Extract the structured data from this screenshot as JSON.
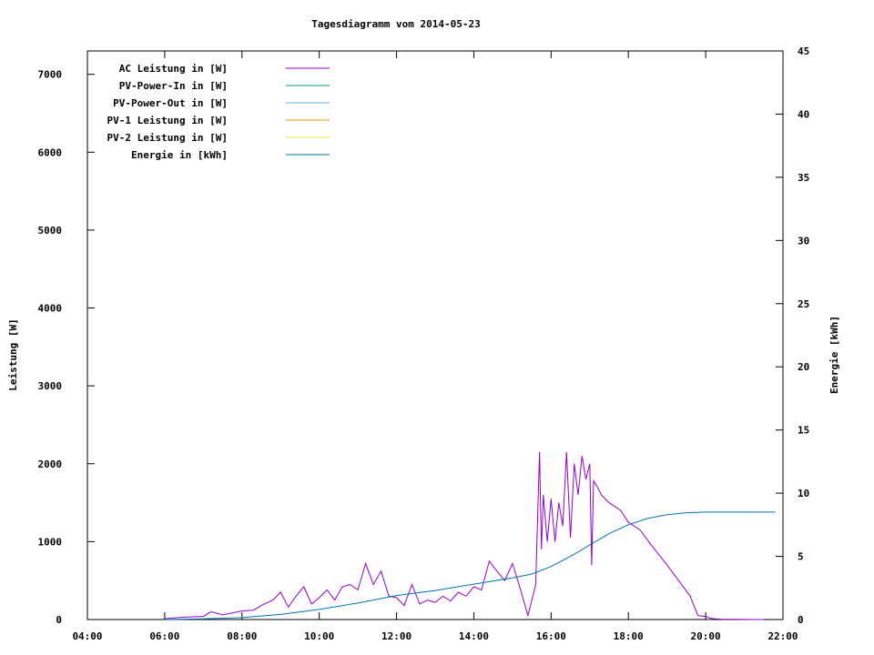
{
  "chart_data": {
    "type": "line",
    "title": "Tagesdiagramm vom 2014-05-23",
    "ylabel": "Leistung [W]",
    "y2label": "Energie [kWh]",
    "xlim": [
      4,
      22
    ],
    "ylim": [
      0,
      7300
    ],
    "y2lim": [
      0,
      45
    ],
    "x_ticks": [
      "04:00",
      "06:00",
      "08:00",
      "10:00",
      "12:00",
      "14:00",
      "16:00",
      "18:00",
      "20:00",
      "22:00"
    ],
    "y_ticks": [
      "0",
      "1000",
      "2000",
      "3000",
      "4000",
      "5000",
      "6000",
      "7000"
    ],
    "y2_ticks": [
      "0",
      "5",
      "10",
      "15",
      "20",
      "25",
      "30",
      "35",
      "40",
      "45"
    ],
    "legend_position": "top-left",
    "legend": [
      {
        "label": "AC Leistung in [W]",
        "color": "#9400d3"
      },
      {
        "label": "PV-Power-In in [W]",
        "color": "#009e73"
      },
      {
        "label": "PV-Power-Out in [W]",
        "color": "#56b4e9"
      },
      {
        "label": "PV-1 Leistung in [W]",
        "color": "#e69f00"
      },
      {
        "label": "PV-2 Leistung in [W]",
        "color": "#f0e442"
      },
      {
        "label": "Energie in [kWh]",
        "color": "#0072b2"
      }
    ],
    "series": [
      {
        "name": "AC Leistung in [W]",
        "axis": "y1",
        "color": "#9400d3",
        "x": [
          6.0,
          6.5,
          7.0,
          7.2,
          7.5,
          8.0,
          8.3,
          8.5,
          8.8,
          9.0,
          9.2,
          9.4,
          9.6,
          9.8,
          10.0,
          10.2,
          10.4,
          10.6,
          10.8,
          11.0,
          11.2,
          11.4,
          11.6,
          11.8,
          12.0,
          12.2,
          12.4,
          12.6,
          12.8,
          13.0,
          13.2,
          13.4,
          13.6,
          13.8,
          14.0,
          14.2,
          14.4,
          14.6,
          14.8,
          15.0,
          15.2,
          15.4,
          15.6,
          15.7,
          15.75,
          15.8,
          15.9,
          16.0,
          16.1,
          16.2,
          16.3,
          16.4,
          16.5,
          16.6,
          16.7,
          16.8,
          16.9,
          17.0,
          17.05,
          17.1,
          17.2,
          17.3,
          17.5,
          17.8,
          18.0,
          18.3,
          18.6,
          19.0,
          19.3,
          19.6,
          19.8,
          20.0,
          20.1,
          20.2,
          20.4,
          20.6,
          20.8,
          21.0,
          21.3,
          21.5
        ],
        "y": [
          10,
          30,
          40,
          100,
          60,
          110,
          120,
          180,
          250,
          350,
          160,
          300,
          420,
          200,
          280,
          380,
          250,
          420,
          450,
          380,
          720,
          450,
          620,
          300,
          280,
          180,
          450,
          200,
          250,
          220,
          300,
          240,
          350,
          300,
          420,
          380,
          750,
          620,
          500,
          720,
          400,
          50,
          450,
          2150,
          900,
          1600,
          1000,
          1550,
          1000,
          1500,
          1200,
          2150,
          1050,
          2000,
          1600,
          2100,
          1800,
          2000,
          700,
          1780,
          1700,
          1600,
          1500,
          1400,
          1250,
          1150,
          950,
          700,
          500,
          300,
          50,
          40,
          20,
          10,
          5,
          3,
          2,
          1,
          0,
          0
        ]
      },
      {
        "name": "Energie in [kWh]",
        "axis": "y2",
        "color": "#0072b2",
        "x": [
          6.0,
          7.0,
          8.0,
          9.0,
          10.0,
          11.0,
          12.0,
          13.0,
          14.0,
          15.0,
          15.5,
          16.0,
          16.5,
          17.0,
          17.5,
          18.0,
          18.5,
          19.0,
          19.5,
          20.0,
          20.2,
          20.5,
          21.0,
          21.5,
          21.8
        ],
        "y": [
          0.0,
          0.05,
          0.15,
          0.4,
          0.8,
          1.3,
          1.9,
          2.3,
          2.8,
          3.3,
          3.6,
          4.2,
          5.0,
          5.9,
          6.8,
          7.5,
          8.0,
          8.3,
          8.45,
          8.5,
          8.5,
          8.5,
          8.5,
          8.5,
          8.5
        ]
      }
    ]
  }
}
